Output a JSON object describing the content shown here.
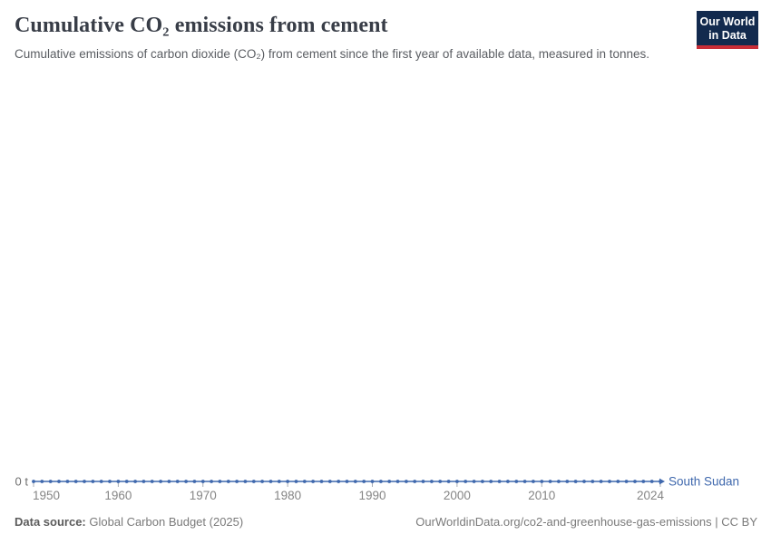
{
  "header": {
    "title": "Cumulative CO₂ emissions from cement",
    "subtitle": "Cumulative emissions of carbon dioxide (CO₂) from cement since the first year of available data, measured in tonnes.",
    "logo": {
      "line1": "Our World",
      "line2": "in Data",
      "bg_color": "#122a4e",
      "accent_color": "#c82d37"
    }
  },
  "chart_data": {
    "type": "line",
    "title": "Cumulative CO₂ emissions from cement",
    "xlabel": "",
    "ylabel": "",
    "unit": "t",
    "x_range": [
      1950,
      2024
    ],
    "x_step_years": 1,
    "x_ticks": [
      1950,
      1960,
      1970,
      1980,
      1990,
      2000,
      2010,
      2024
    ],
    "y_axis_label": "0 t",
    "ylim": [
      0,
      0
    ],
    "grid": false,
    "legend_position": "end-of-line",
    "series": [
      {
        "name": "South Sudan",
        "color": "#3f68ad",
        "years_start": 1950,
        "years_end": 2024,
        "constant_value": 0,
        "marker": "circle"
      }
    ],
    "axis_text_color": "#858585",
    "tick_color": "#a8adb5"
  },
  "footer": {
    "source_label": "Data source:",
    "source_value": "Global Carbon Budget (2025)",
    "link_text": "OurWorldinData.org/co2-and-greenhouse-gas-emissions | CC BY"
  }
}
